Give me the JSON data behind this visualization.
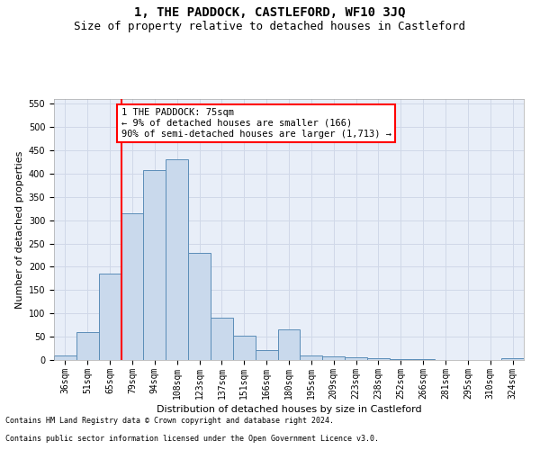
{
  "title": "1, THE PADDOCK, CASTLEFORD, WF10 3JQ",
  "subtitle": "Size of property relative to detached houses in Castleford",
  "xlabel": "Distribution of detached houses by size in Castleford",
  "ylabel": "Number of detached properties",
  "footnote1": "Contains HM Land Registry data © Crown copyright and database right 2024.",
  "footnote2": "Contains public sector information licensed under the Open Government Licence v3.0.",
  "categories": [
    "36sqm",
    "51sqm",
    "65sqm",
    "79sqm",
    "94sqm",
    "108sqm",
    "123sqm",
    "137sqm",
    "151sqm",
    "166sqm",
    "180sqm",
    "195sqm",
    "209sqm",
    "223sqm",
    "238sqm",
    "252sqm",
    "266sqm",
    "281sqm",
    "295sqm",
    "310sqm",
    "324sqm"
  ],
  "bar_values": [
    10,
    60,
    185,
    315,
    407,
    430,
    230,
    90,
    52,
    22,
    65,
    10,
    8,
    5,
    3,
    2,
    1,
    0,
    0,
    0,
    3
  ],
  "bar_color": "#c9d9ec",
  "bar_edge_color": "#5b8db8",
  "vline_color": "red",
  "annotation_text": "1 THE PADDOCK: 75sqm\n← 9% of detached houses are smaller (166)\n90% of semi-detached houses are larger (1,713) →",
  "annotation_box_color": "white",
  "annotation_box_edge": "red",
  "ylim": [
    0,
    560
  ],
  "yticks": [
    0,
    50,
    100,
    150,
    200,
    250,
    300,
    350,
    400,
    450,
    500,
    550
  ],
  "grid_color": "#d0d8e8",
  "background_color": "#e8eef8",
  "title_fontsize": 10,
  "subtitle_fontsize": 9,
  "axis_label_fontsize": 8,
  "tick_fontsize": 7,
  "annotation_fontsize": 7.5,
  "footnote_fontsize": 6
}
